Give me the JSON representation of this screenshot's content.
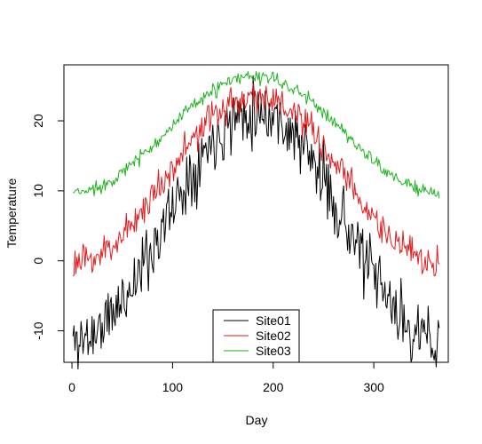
{
  "chart_data": {
    "type": "line",
    "title": "",
    "xlabel": "Day",
    "ylabel": "Temperature",
    "xlim": [
      -8,
      374
    ],
    "ylim": [
      -14.5,
      28
    ],
    "xticks": [
      0,
      100,
      200,
      300
    ],
    "yticks": [
      -10,
      0,
      10,
      20
    ],
    "grid": false,
    "legend": {
      "placement": "bottom-center",
      "entries": [
        "Site01",
        "Site02",
        "Site03"
      ]
    },
    "series": [
      {
        "name": "Site01",
        "color": "#000000",
        "mean": 5.0,
        "amplitude": 16.5,
        "peak_day": 182,
        "noise": 2.3,
        "seed": 11,
        "x_range": [
          1,
          365
        ]
      },
      {
        "name": "Site02",
        "color": "#e41a1c",
        "mean": 11.5,
        "amplitude": 12.0,
        "peak_day": 182,
        "noise": 1.2,
        "seed": 23,
        "x_range": [
          1,
          365
        ]
      },
      {
        "name": "Site03",
        "color": "#1bb51b",
        "mean": 18.0,
        "amplitude": 8.3,
        "peak_day": 182,
        "noise": 0.5,
        "seed": 37,
        "x_range": [
          1,
          365
        ]
      }
    ]
  }
}
